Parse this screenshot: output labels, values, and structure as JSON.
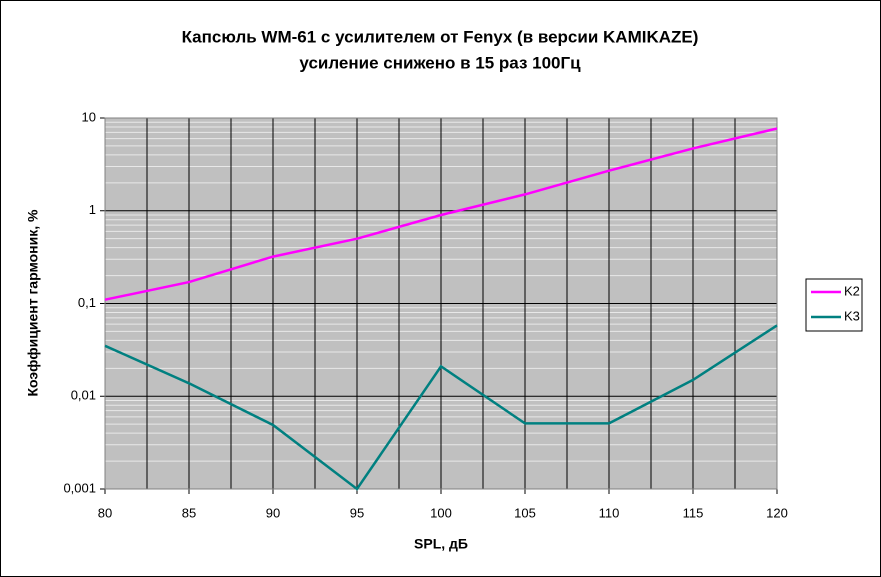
{
  "chart_data": {
    "type": "line",
    "title": "Капсюль WM-61 с усилителем от Fenyx (в версии KAMIKAZE)",
    "subtitle": "усиление снижено в 15 раз 100Гц",
    "x_label": "SPL, дБ",
    "y_label": "Коэффициент гармоник, %",
    "x": [
      80,
      85,
      90,
      95,
      100,
      105,
      110,
      115,
      120
    ],
    "series": [
      {
        "name": "K2",
        "color": "#ff00ff",
        "values": [
          0.11,
          0.17,
          0.32,
          0.5,
          0.9,
          1.5,
          2.7,
          4.7,
          7.7
        ]
      },
      {
        "name": "K3",
        "color": "#008080",
        "values": [
          0.035,
          0.0138,
          0.0049,
          0.001,
          0.021,
          0.0051,
          0.0051,
          0.015,
          0.058
        ]
      }
    ],
    "xlim": [
      80,
      120
    ],
    "xticks": [
      80,
      85,
      90,
      95,
      100,
      105,
      110,
      115,
      120
    ],
    "ylim": [
      0.001,
      10
    ],
    "yticks": [
      {
        "value": 0.001,
        "label": "0,001"
      },
      {
        "value": 0.01,
        "label": "0,01"
      },
      {
        "value": 0.1,
        "label": "0,1"
      },
      1,
      10
    ],
    "log_y": true,
    "grid": true,
    "legend": "right"
  }
}
